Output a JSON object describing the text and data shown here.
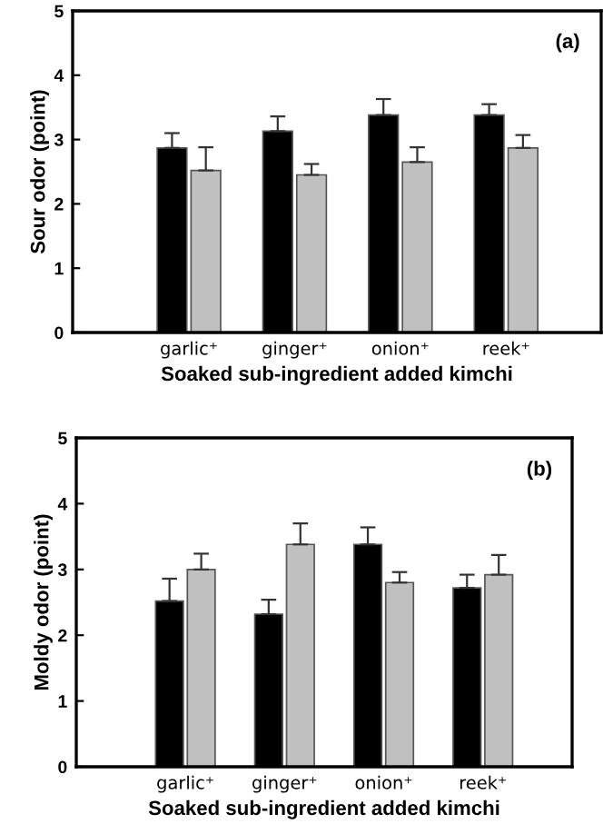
{
  "chart_data": [
    {
      "type": "bar",
      "ylabel": "Sour odor (point)",
      "xlabel": "Soaked sub-ingredient added kimchi",
      "annotations": [
        "(a)"
      ],
      "categories": [
        "garlic⁺",
        "ginger⁺",
        "onion⁺",
        "reek⁺"
      ],
      "series": [
        {
          "color": "#000000",
          "values": [
            2.87,
            3.13,
            3.38,
            3.38
          ],
          "errors": [
            [
              2.87,
              3.1
            ],
            [
              3.13,
              3.36
            ],
            [
              3.38,
              3.63
            ],
            [
              3.38,
              3.55
            ]
          ]
        },
        {
          "color": "#c0c0c0",
          "values": [
            2.52,
            2.45,
            2.65,
            2.87
          ],
          "errors": [
            [
              2.52,
              2.88
            ],
            [
              2.45,
              2.62
            ],
            [
              2.65,
              2.88
            ],
            [
              2.87,
              3.07
            ]
          ]
        }
      ],
      "ylim": [
        0,
        5
      ],
      "yticks": [
        0,
        1,
        2,
        3,
        4,
        5
      ],
      "grid": false,
      "legend": false
    },
    {
      "type": "bar",
      "ylabel": "Moldy odor (point)",
      "xlabel": "Soaked sub-ingredient added kimchi",
      "annotations": [
        "(b)"
      ],
      "categories": [
        "garlic⁺",
        "ginger⁺",
        "onion⁺",
        "reek⁺"
      ],
      "series": [
        {
          "color": "#000000",
          "values": [
            2.52,
            2.32,
            3.38,
            2.72
          ],
          "errors": [
            [
              2.52,
              2.86
            ],
            [
              2.32,
              2.54
            ],
            [
              3.38,
              3.64
            ],
            [
              2.72,
              2.92
            ]
          ]
        },
        {
          "color": "#c0c0c0",
          "values": [
            3.0,
            3.38,
            2.8,
            2.92
          ],
          "errors": [
            [
              3.0,
              3.24
            ],
            [
              3.38,
              3.7
            ],
            [
              2.8,
              2.96
            ],
            [
              2.92,
              3.22
            ]
          ]
        }
      ],
      "ylim": [
        0,
        5
      ],
      "yticks": [
        0,
        1,
        2,
        3,
        4,
        5
      ],
      "grid": false,
      "legend": false
    }
  ]
}
